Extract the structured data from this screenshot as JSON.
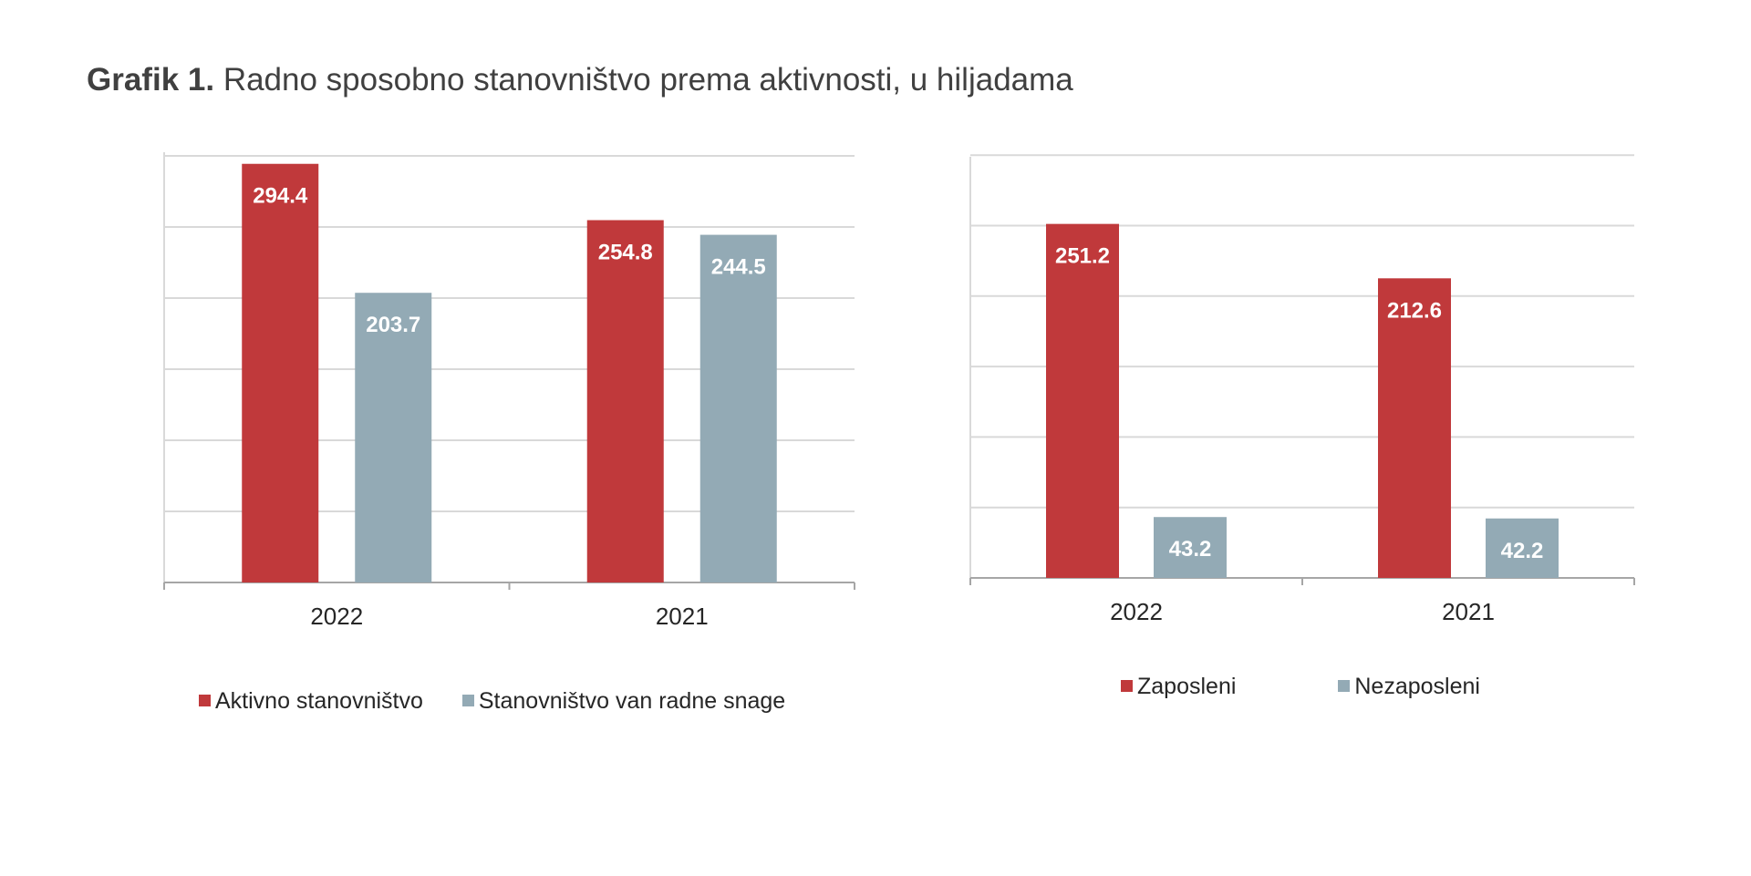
{
  "title": {
    "label": "Grafik 1.",
    "text": "Radno sposobno stanovništvo prema aktivnosti, u hiljadama"
  },
  "colors": {
    "red": "#c0393b",
    "blue_grey": "#93aab5",
    "grid": "#d9d9d9",
    "axis": "#a6a6a6"
  },
  "chart_data": [
    {
      "type": "bar",
      "categories": [
        "2022",
        "2021"
      ],
      "series": [
        {
          "name": "Aktivno stanovništvo",
          "values": [
            294.4,
            254.8
          ],
          "color": "#c0393b"
        },
        {
          "name": "Stanovništvo van radne snage",
          "values": [
            203.7,
            244.5
          ],
          "color": "#93aab5"
        }
      ],
      "ylim": [
        0,
        300
      ],
      "ytick_step": 50,
      "grid": true,
      "legend_position": "bottom"
    },
    {
      "type": "bar",
      "categories": [
        "2022",
        "2021"
      ],
      "series": [
        {
          "name": "Zaposleni",
          "values": [
            251.2,
            212.6
          ],
          "color": "#c0393b"
        },
        {
          "name": "Nezaposleni",
          "values": [
            43.2,
            42.2
          ],
          "color": "#93aab5"
        }
      ],
      "ylim": [
        0,
        300
      ],
      "ytick_step": 50,
      "grid": true,
      "legend_position": "bottom"
    }
  ]
}
